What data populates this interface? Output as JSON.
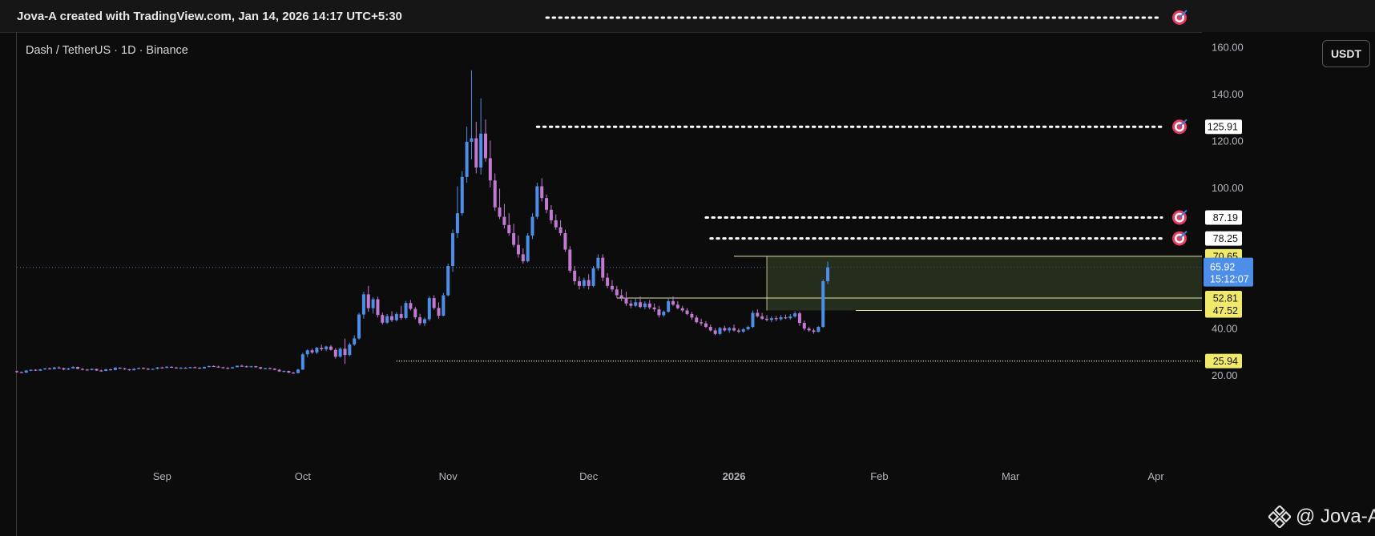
{
  "header": {
    "title": "Jova-A created with TradingView.com, Jan 14, 2026 14:17 UTC+5:30"
  },
  "symbol_label": "Dash / TetherUS · 1D · Binance",
  "currency_button": "USDT",
  "watermark": "@ Jova-A",
  "icons": [
    "target-icon",
    "binance-logo-icon"
  ],
  "colors": {
    "up": "#4d8fe8",
    "down": "#c179d1",
    "target_line": "#ffffff",
    "zone_line": "#e6e6a0",
    "zone_fill": "#3a4a2c",
    "label_yellow": "#f0e96a",
    "label_blue": "#4d8fe8"
  },
  "chart_data": {
    "type": "candlestick",
    "title": "Dash / TetherUS · 1D · Binance",
    "y_axis": {
      "ticks": [
        20,
        40,
        60,
        80,
        100,
        120,
        140,
        160
      ],
      "tick_labels": [
        "20.00",
        "40.00",
        "60.00",
        "80.00",
        "100.00",
        "120.00",
        "140.00",
        "160.00"
      ],
      "range": [
        14,
        180
      ],
      "position": "right"
    },
    "x_axis": {
      "labels": [
        "Sep",
        "Oct",
        "Nov",
        "Dec",
        "2026",
        "Feb",
        "Mar",
        "Apr"
      ],
      "range": [
        "2025-08-01",
        "2026-04-10"
      ]
    },
    "grid": false,
    "last_price": {
      "value": 65.92,
      "label": "65.92",
      "countdown": "15:12:07"
    },
    "price_labels": [
      {
        "value": 125.91,
        "label": "125.91",
        "style": "white"
      },
      {
        "value": 87.19,
        "label": "87.19",
        "style": "white"
      },
      {
        "value": 78.25,
        "label": "78.25",
        "style": "white"
      },
      {
        "value": 70.65,
        "label": "70.65",
        "style": "yellow"
      },
      {
        "value": 52.81,
        "label": "52.81",
        "style": "yellow"
      },
      {
        "value": 47.52,
        "label": "47.52",
        "style": "yellow"
      },
      {
        "value": 25.94,
        "label": "25.94",
        "style": "yellow"
      }
    ],
    "target_lines": [
      {
        "value": 172.5,
        "from": "2025-11-22"
      },
      {
        "value": 125.91,
        "from": "2025-11-20"
      },
      {
        "value": 87.19,
        "from": "2025-12-26"
      },
      {
        "value": 78.25,
        "from": "2025-12-27"
      }
    ],
    "zone": {
      "top": 70.65,
      "bottom": 47.52,
      "from": "2026-01-08"
    },
    "support_lines": [
      {
        "value": 52.81,
        "from": "2025-12-07"
      },
      {
        "value": 47.52,
        "from": "2026-01-27"
      },
      {
        "value": 25.94,
        "from": "2025-10-21",
        "style": "dotted"
      }
    ],
    "candles": [
      [
        "2025-08-01",
        21.6,
        21.9,
        21.0,
        21.2
      ],
      [
        "2025-08-02",
        21.2,
        21.5,
        20.8,
        21.0
      ],
      [
        "2025-08-03",
        21.0,
        22.1,
        20.9,
        21.9
      ],
      [
        "2025-08-04",
        21.9,
        22.4,
        21.6,
        22.2
      ],
      [
        "2025-08-05",
        22.2,
        22.5,
        21.7,
        21.8
      ],
      [
        "2025-08-06",
        21.8,
        22.6,
        21.7,
        22.4
      ],
      [
        "2025-08-07",
        22.4,
        23.0,
        22.2,
        22.8
      ],
      [
        "2025-08-08",
        22.8,
        23.2,
        22.3,
        22.5
      ],
      [
        "2025-08-09",
        22.5,
        23.5,
        22.4,
        23.2
      ],
      [
        "2025-08-10",
        23.2,
        23.6,
        22.7,
        22.9
      ],
      [
        "2025-08-11",
        22.9,
        23.1,
        22.0,
        22.3
      ],
      [
        "2025-08-12",
        22.3,
        23.0,
        22.1,
        22.8
      ],
      [
        "2025-08-13",
        22.8,
        23.8,
        22.7,
        23.4
      ],
      [
        "2025-08-14",
        23.4,
        23.6,
        22.4,
        22.6
      ],
      [
        "2025-08-15",
        22.6,
        22.9,
        22.0,
        22.3
      ],
      [
        "2025-08-16",
        22.3,
        22.6,
        21.9,
        22.1
      ],
      [
        "2025-08-17",
        22.1,
        22.8,
        22.0,
        22.6
      ],
      [
        "2025-08-18",
        22.6,
        22.7,
        21.7,
        21.9
      ],
      [
        "2025-08-19",
        21.9,
        22.3,
        21.4,
        21.7
      ],
      [
        "2025-08-20",
        21.7,
        22.6,
        21.6,
        22.4
      ],
      [
        "2025-08-21",
        22.4,
        22.7,
        21.9,
        22.1
      ],
      [
        "2025-08-22",
        22.1,
        23.4,
        22.0,
        23.1
      ],
      [
        "2025-08-23",
        23.1,
        23.3,
        22.6,
        22.8
      ],
      [
        "2025-08-24",
        22.8,
        23.1,
        22.2,
        22.4
      ],
      [
        "2025-08-25",
        22.4,
        22.6,
        21.8,
        22.0
      ],
      [
        "2025-08-26",
        22.0,
        22.9,
        21.9,
        22.6
      ],
      [
        "2025-08-27",
        22.6,
        23.2,
        22.4,
        23.0
      ],
      [
        "2025-08-28",
        23.0,
        23.3,
        22.5,
        22.7
      ],
      [
        "2025-08-29",
        22.7,
        22.9,
        22.1,
        22.3
      ],
      [
        "2025-08-30",
        22.3,
        22.8,
        22.2,
        22.6
      ],
      [
        "2025-08-31",
        22.6,
        23.4,
        22.5,
        23.2
      ],
      [
        "2025-09-01",
        23.2,
        23.5,
        22.8,
        23.0
      ],
      [
        "2025-09-02",
        23.0,
        23.8,
        22.9,
        23.5
      ],
      [
        "2025-09-03",
        23.5,
        23.7,
        23.0,
        23.2
      ],
      [
        "2025-09-04",
        23.2,
        23.4,
        22.7,
        22.9
      ],
      [
        "2025-09-05",
        22.9,
        23.3,
        22.6,
        23.1
      ],
      [
        "2025-09-06",
        23.1,
        23.3,
        22.7,
        22.9
      ],
      [
        "2025-09-07",
        22.9,
        23.5,
        22.8,
        23.3
      ],
      [
        "2025-09-08",
        23.3,
        23.6,
        22.9,
        23.1
      ],
      [
        "2025-09-09",
        23.1,
        23.3,
        22.6,
        22.8
      ],
      [
        "2025-09-10",
        22.8,
        23.6,
        22.7,
        23.4
      ],
      [
        "2025-09-11",
        23.4,
        24.0,
        23.2,
        23.8
      ],
      [
        "2025-09-12",
        23.8,
        24.1,
        23.4,
        23.6
      ],
      [
        "2025-09-13",
        23.6,
        23.9,
        23.1,
        23.3
      ],
      [
        "2025-09-14",
        23.3,
        23.5,
        22.8,
        23.0
      ],
      [
        "2025-09-15",
        23.0,
        23.4,
        22.6,
        22.8
      ],
      [
        "2025-09-16",
        22.8,
        23.5,
        22.7,
        23.3
      ],
      [
        "2025-09-17",
        23.3,
        24.1,
        23.2,
        23.9
      ],
      [
        "2025-09-18",
        23.9,
        24.4,
        23.6,
        23.7
      ],
      [
        "2025-09-19",
        23.7,
        24.0,
        23.2,
        23.4
      ],
      [
        "2025-09-20",
        23.4,
        23.9,
        23.3,
        23.7
      ],
      [
        "2025-09-21",
        23.7,
        23.9,
        23.1,
        23.3
      ],
      [
        "2025-09-22",
        23.3,
        23.5,
        22.4,
        22.7
      ],
      [
        "2025-09-23",
        22.7,
        23.1,
        22.4,
        22.9
      ],
      [
        "2025-09-24",
        22.9,
        23.2,
        22.5,
        22.7
      ],
      [
        "2025-09-25",
        22.7,
        22.9,
        22.0,
        22.2
      ],
      [
        "2025-09-26",
        22.2,
        22.5,
        21.3,
        21.5
      ],
      [
        "2025-09-27",
        21.5,
        21.9,
        21.2,
        21.7
      ],
      [
        "2025-09-28",
        21.7,
        21.8,
        20.8,
        21.0
      ],
      [
        "2025-09-29",
        21.0,
        21.3,
        20.5,
        20.8
      ],
      [
        "2025-09-30",
        20.8,
        22.6,
        20.7,
        22.3
      ],
      [
        "2025-10-01",
        22.3,
        29.5,
        22.1,
        28.8
      ],
      [
        "2025-10-02",
        28.8,
        31.0,
        27.6,
        30.5
      ],
      [
        "2025-10-03",
        30.5,
        31.2,
        29.0,
        29.6
      ],
      [
        "2025-10-04",
        29.6,
        32.0,
        28.9,
        31.6
      ],
      [
        "2025-10-05",
        31.6,
        33.0,
        30.3,
        31.0
      ],
      [
        "2025-10-06",
        31.0,
        32.5,
        30.2,
        32.1
      ],
      [
        "2025-10-07",
        32.1,
        32.8,
        30.4,
        30.7
      ],
      [
        "2025-10-08",
        30.7,
        31.5,
        27.0,
        27.8
      ],
      [
        "2025-10-09",
        27.8,
        31.8,
        27.4,
        31.2
      ],
      [
        "2025-10-10",
        31.2,
        35.5,
        24.8,
        28.5
      ],
      [
        "2025-10-11",
        28.5,
        33.8,
        28.0,
        33.0
      ],
      [
        "2025-10-12",
        33.0,
        37.0,
        32.4,
        35.6
      ],
      [
        "2025-10-13",
        35.6,
        46.5,
        35.0,
        45.8
      ],
      [
        "2025-10-14",
        45.8,
        55.5,
        44.0,
        54.4
      ],
      [
        "2025-10-15",
        54.4,
        58.0,
        47.0,
        48.5
      ],
      [
        "2025-10-16",
        48.5,
        53.2,
        46.2,
        52.3
      ],
      [
        "2025-10-17",
        52.3,
        53.4,
        44.5,
        45.6
      ],
      [
        "2025-10-18",
        45.6,
        46.6,
        41.5,
        42.3
      ],
      [
        "2025-10-19",
        42.3,
        46.0,
        41.8,
        45.1
      ],
      [
        "2025-10-20",
        45.1,
        47.2,
        42.6,
        43.4
      ],
      [
        "2025-10-21",
        43.4,
        46.8,
        42.8,
        46.0
      ],
      [
        "2025-10-22",
        46.0,
        49.5,
        43.5,
        44.3
      ],
      [
        "2025-10-23",
        44.3,
        51.6,
        43.8,
        50.7
      ],
      [
        "2025-10-24",
        50.7,
        52.0,
        47.5,
        48.2
      ],
      [
        "2025-10-25",
        48.2,
        49.0,
        43.8,
        44.6
      ],
      [
        "2025-10-26",
        44.6,
        46.1,
        41.2,
        42.1
      ],
      [
        "2025-10-27",
        42.1,
        44.5,
        40.8,
        43.8
      ],
      [
        "2025-10-28",
        43.8,
        53.6,
        43.0,
        52.8
      ],
      [
        "2025-10-29",
        52.8,
        54.0,
        47.8,
        48.6
      ],
      [
        "2025-10-30",
        48.6,
        51.0,
        44.0,
        45.3
      ],
      [
        "2025-10-31",
        45.3,
        55.0,
        45.0,
        54.0
      ],
      [
        "2025-11-01",
        54.0,
        67.5,
        53.5,
        66.5
      ],
      [
        "2025-11-02",
        66.5,
        82.0,
        64.0,
        80.5
      ],
      [
        "2025-11-03",
        80.5,
        100.5,
        78.5,
        89.0
      ],
      [
        "2025-11-04",
        89.0,
        107.0,
        88.0,
        104.5
      ],
      [
        "2025-11-05",
        104.5,
        126.0,
        102.0,
        119.5
      ],
      [
        "2025-11-06",
        119.5,
        150.0,
        112.0,
        121.0
      ],
      [
        "2025-11-07",
        121.0,
        128.0,
        106.0,
        108.5
      ],
      [
        "2025-11-08",
        108.5,
        138.0,
        105.5,
        123.0
      ],
      [
        "2025-11-09",
        123.0,
        129.0,
        111.0,
        112.5
      ],
      [
        "2025-11-10",
        112.5,
        120.0,
        100.0,
        103.0
      ],
      [
        "2025-11-11",
        103.0,
        106.0,
        90.0,
        91.5
      ],
      [
        "2025-11-12",
        91.5,
        99.5,
        86.5,
        87.5
      ],
      [
        "2025-11-13",
        87.5,
        93.0,
        82.5,
        84.0
      ],
      [
        "2025-11-14",
        84.0,
        89.0,
        79.5,
        80.5
      ],
      [
        "2025-11-15",
        80.5,
        84.5,
        74.5,
        75.5
      ],
      [
        "2025-11-16",
        75.5,
        79.5,
        70.0,
        71.5
      ],
      [
        "2025-11-17",
        71.5,
        74.0,
        67.5,
        68.5
      ],
      [
        "2025-11-18",
        68.5,
        80.5,
        68.0,
        79.5
      ],
      [
        "2025-11-19",
        79.5,
        89.0,
        78.0,
        87.5
      ],
      [
        "2025-11-20",
        87.5,
        102.0,
        86.5,
        100.5
      ],
      [
        "2025-11-21",
        100.5,
        104.0,
        94.0,
        95.5
      ],
      [
        "2025-11-22",
        95.5,
        97.0,
        89.0,
        90.5
      ],
      [
        "2025-11-23",
        90.5,
        92.5,
        84.5,
        86.0
      ],
      [
        "2025-11-24",
        86.0,
        88.5,
        82.0,
        83.0
      ],
      [
        "2025-11-25",
        83.0,
        86.0,
        79.5,
        80.5
      ],
      [
        "2025-11-26",
        80.5,
        82.0,
        72.5,
        73.5
      ],
      [
        "2025-11-27",
        73.5,
        75.0,
        63.5,
        64.5
      ],
      [
        "2025-11-28",
        64.5,
        66.5,
        58.5,
        60.0
      ],
      [
        "2025-11-29",
        60.0,
        62.0,
        56.5,
        58.0
      ],
      [
        "2025-11-30",
        58.0,
        61.5,
        57.0,
        60.5
      ],
      [
        "2025-12-01",
        60.5,
        63.0,
        56.5,
        58.0
      ],
      [
        "2025-12-02",
        58.0,
        66.5,
        57.5,
        65.5
      ],
      [
        "2025-12-03",
        65.5,
        71.5,
        64.5,
        70.0
      ],
      [
        "2025-12-04",
        70.0,
        71.5,
        60.0,
        61.5
      ],
      [
        "2025-12-05",
        61.5,
        63.5,
        57.0,
        58.0
      ],
      [
        "2025-12-06",
        58.0,
        60.5,
        55.5,
        56.5
      ],
      [
        "2025-12-07",
        56.5,
        58.0,
        53.0,
        54.0
      ],
      [
        "2025-12-08",
        54.0,
        56.5,
        51.5,
        53.0
      ],
      [
        "2025-12-09",
        53.0,
        55.5,
        49.5,
        50.5
      ],
      [
        "2025-12-10",
        50.5,
        52.0,
        48.5,
        49.5
      ],
      [
        "2025-12-11",
        49.5,
        52.5,
        49.0,
        51.0
      ],
      [
        "2025-12-12",
        51.0,
        53.5,
        48.5,
        49.0
      ],
      [
        "2025-12-13",
        49.0,
        51.5,
        48.0,
        50.5
      ],
      [
        "2025-12-14",
        50.5,
        52.0,
        48.0,
        48.8
      ],
      [
        "2025-12-15",
        48.8,
        50.5,
        47.0,
        48.0
      ],
      [
        "2025-12-16",
        48.0,
        49.5,
        44.5,
        45.5
      ],
      [
        "2025-12-17",
        45.5,
        47.5,
        44.8,
        47.0
      ],
      [
        "2025-12-18",
        47.0,
        52.5,
        46.5,
        51.5
      ],
      [
        "2025-12-19",
        51.5,
        53.5,
        49.5,
        50.0
      ],
      [
        "2025-12-20",
        50.0,
        51.5,
        48.0,
        48.5
      ],
      [
        "2025-12-21",
        48.5,
        49.5,
        46.8,
        47.5
      ],
      [
        "2025-12-22",
        47.5,
        48.5,
        45.5,
        46.0
      ],
      [
        "2025-12-23",
        46.0,
        47.0,
        43.5,
        44.5
      ],
      [
        "2025-12-24",
        44.5,
        45.5,
        42.0,
        42.5
      ],
      [
        "2025-12-25",
        42.5,
        44.0,
        41.0,
        42.0
      ],
      [
        "2025-12-26",
        42.0,
        43.0,
        40.0,
        40.5
      ],
      [
        "2025-12-27",
        40.5,
        41.5,
        38.5,
        39.0
      ],
      [
        "2025-12-28",
        39.0,
        40.0,
        37.0,
        37.5
      ],
      [
        "2025-12-29",
        37.5,
        40.5,
        37.0,
        40.0
      ],
      [
        "2025-12-30",
        40.0,
        41.0,
        38.5,
        39.0
      ],
      [
        "2025-12-31",
        39.0,
        40.5,
        38.0,
        40.0
      ],
      [
        "2026-01-01",
        40.0,
        41.5,
        38.5,
        39.0
      ],
      [
        "2026-01-02",
        39.0,
        39.8,
        37.8,
        38.5
      ],
      [
        "2026-01-03",
        38.5,
        40.0,
        38.0,
        39.5
      ],
      [
        "2026-01-04",
        39.5,
        41.0,
        39.0,
        40.5
      ],
      [
        "2026-01-05",
        40.5,
        47.5,
        40.0,
        46.5
      ],
      [
        "2026-01-06",
        46.5,
        48.0,
        44.5,
        45.0
      ],
      [
        "2026-01-07",
        45.0,
        46.5,
        43.5,
        44.0
      ],
      [
        "2026-01-08",
        44.0,
        45.5,
        42.8,
        43.5
      ],
      [
        "2026-01-09",
        43.5,
        45.0,
        42.5,
        44.2
      ],
      [
        "2026-01-10",
        44.2,
        45.2,
        43.0,
        43.8
      ],
      [
        "2026-01-11",
        43.8,
        45.6,
        43.2,
        44.6
      ],
      [
        "2026-01-12",
        44.6,
        45.8,
        43.8,
        44.2
      ],
      [
        "2026-01-13",
        44.2,
        46.0,
        43.6,
        45.0
      ],
      [
        "2026-01-14",
        45.0,
        47.2,
        44.4,
        46.3
      ],
      [
        "2026-01-15",
        46.3,
        47.0,
        41.0,
        42.2
      ],
      [
        "2026-01-16",
        42.2,
        43.2,
        39.0,
        39.8
      ],
      [
        "2026-01-17",
        39.8,
        40.6,
        38.4,
        39.0
      ],
      [
        "2026-01-18",
        39.0,
        39.8,
        37.6,
        38.4
      ],
      [
        "2026-01-19",
        38.4,
        40.8,
        38.2,
        40.5
      ],
      [
        "2026-01-20",
        40.5,
        60.8,
        40.2,
        60.0
      ],
      [
        "2026-01-21",
        60.0,
        68.4,
        58.8,
        65.92
      ]
    ]
  }
}
